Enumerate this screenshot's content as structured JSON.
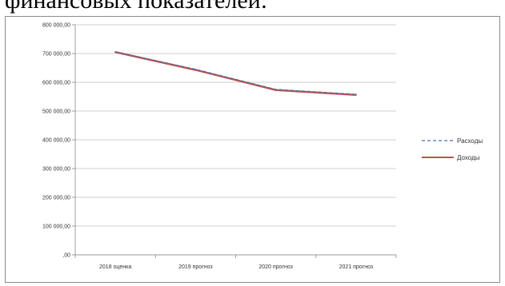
{
  "caption": "финансовых показателей:",
  "chart_data": {
    "type": "line",
    "title": "",
    "xlabel": "",
    "ylabel": "",
    "categories": [
      "2018 оценка",
      "2019 прогноз",
      "2020 прогноз",
      "2021 прогноз"
    ],
    "ylim": [
      0,
      800000
    ],
    "y_ticks": [
      0,
      100000,
      200000,
      300000,
      400000,
      500000,
      600000,
      700000,
      800000
    ],
    "y_tick_labels": [
      ",00",
      "100 000,00",
      "200 000,00",
      "300 000,00",
      "400 000,00",
      "500 000,00",
      "600 000,00",
      "700 000,00",
      "800 000,00"
    ],
    "grid": "horizontal",
    "legend_position": "right",
    "series": [
      {
        "name": "Расходы",
        "values": [
          705000,
          645000,
          575000,
          558000
        ],
        "color": "#4a6fa5",
        "style": "dashed"
      },
      {
        "name": "Доходы",
        "values": [
          705000,
          643000,
          573000,
          556000
        ],
        "color": "#c0504d",
        "style": "solid"
      }
    ]
  }
}
